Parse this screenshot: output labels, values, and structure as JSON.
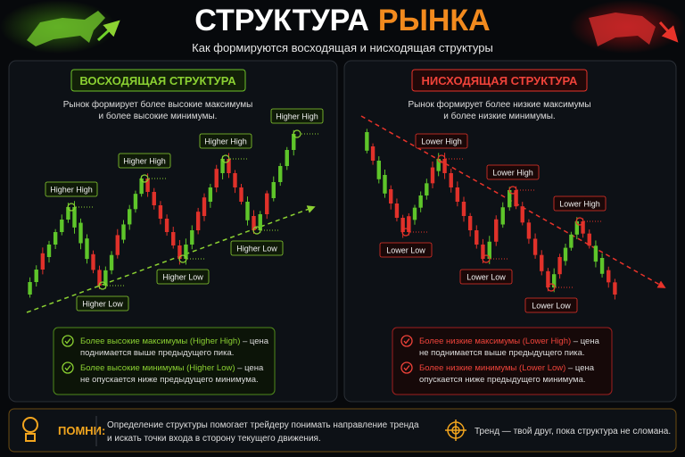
{
  "header": {
    "title_1": "СТРУКТУРА",
    "title_2": "РЫНКА",
    "subtitle": "Как формируются восходящая и нисходящая структуры"
  },
  "uptrend": {
    "title": "ВОСХОДЯЩАЯ СТРУКТУРА",
    "description": [
      "Рынок формирует более высокие максимумы",
      "и более высокие минимумы."
    ],
    "labels": [
      "Higher High",
      "Higher Low",
      "Higher High",
      "Higher Low",
      "Higher High",
      "Higher Low",
      "Higher High"
    ],
    "points": [
      {
        "highlight": "Более высокие максимумы (Higher High)",
        "rest": " – цена",
        "line2": "поднимается выше предыдущего пика."
      },
      {
        "highlight": "Более высокие минимумы (Higher Low)",
        "rest": " – цена",
        "line2": "не опускается ниже предыдущего минимума."
      }
    ]
  },
  "downtrend": {
    "title": "НИСХОДЯЩАЯ СТРУКТУРА",
    "description": [
      "Рынок формирует более низкие максимумы",
      "и более низкие минимумы."
    ],
    "labels": [
      "Lower Low",
      "Lower High",
      "Lower Low",
      "Lower High",
      "Lower Low",
      "Lower High"
    ],
    "points": [
      {
        "highlight": "Более низкие максимумы (Lower High)",
        "rest": " – цена",
        "line2": "не поднимается выше предыдущего пика."
      },
      {
        "highlight": "Более низкие минимумы (Lower Low)",
        "rest": " – цена",
        "line2": "опускается ниже предыдущего минимума."
      }
    ]
  },
  "footer": {
    "remember": "ПОМНИ:",
    "text": [
      "Определение структуры помогает трейдеру понимать направление тренда",
      "и искать точки входа в сторону текущего движения."
    ],
    "motto": "Тренд — твой друг, пока структура не сломана."
  }
}
